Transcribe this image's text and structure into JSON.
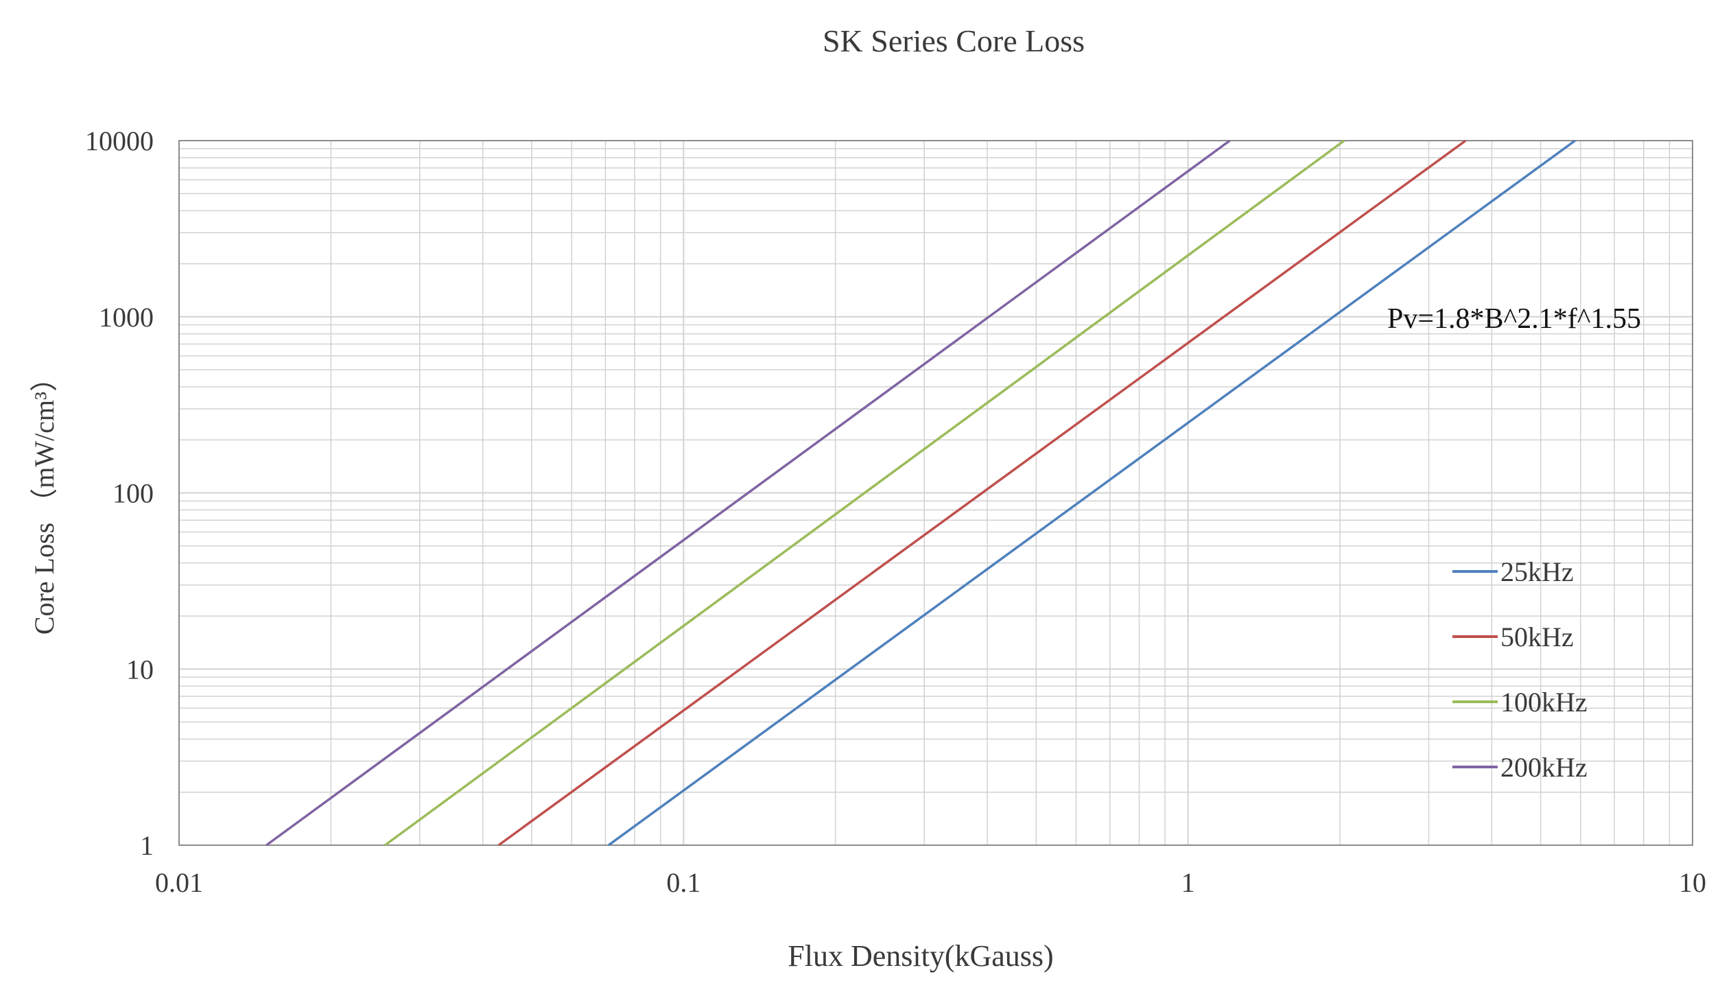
{
  "chart_data": {
    "type": "line",
    "title": "SK Series Core  Loss",
    "xlabel": "Flux Density(kGauss)",
    "ylabel": "Core Loss （mW/cm³）",
    "x_scale": "log",
    "y_scale": "log",
    "xlim": [
      0.01,
      10
    ],
    "ylim": [
      1,
      10000
    ],
    "x_ticks": [
      "0.01",
      "0.1",
      "1",
      "10"
    ],
    "y_ticks": [
      "1",
      "10",
      "100",
      "1000",
      "10000"
    ],
    "grid": true,
    "legend_position": "bottom-right",
    "annotation": "Pv=1.8*B^2.1*f^1.55",
    "series": [
      {
        "name": "25kHz",
        "color": "#4f81bd",
        "x": [
          0.071,
          5.85
        ],
        "y": [
          1,
          10000
        ]
      },
      {
        "name": "50kHz",
        "color": "#c0504d",
        "x": [
          0.043,
          3.55
        ],
        "y": [
          1,
          10000
        ]
      },
      {
        "name": "100kHz",
        "color": "#9bbb59",
        "x": [
          0.0256,
          2.04
        ],
        "y": [
          1,
          10000
        ]
      },
      {
        "name": "200kHz",
        "color": "#8064a2",
        "x": [
          0.0149,
          1.21
        ],
        "y": [
          1,
          10000
        ]
      }
    ]
  }
}
